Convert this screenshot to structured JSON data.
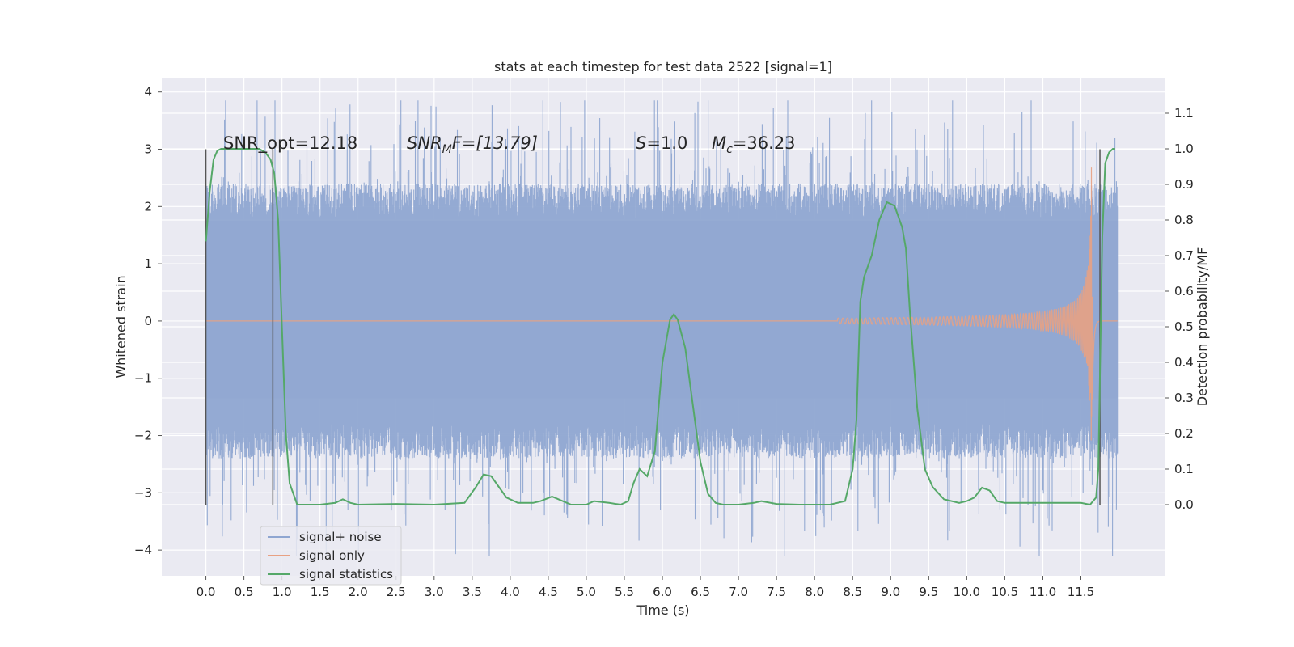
{
  "chart_data": {
    "type": "line",
    "title": "stats at each timestep for test data 2522 [signal=1]",
    "xlabel": "Time (s)",
    "ylabel_left": "Whitened strain",
    "ylabel_right": "Detection probability/MF",
    "xlim": [
      -0.58,
      12.6
    ],
    "ylim_left": [
      -4.45,
      4.25
    ],
    "ylim_right": [
      -0.2,
      1.2
    ],
    "x_ticks": [
      "0.0",
      "0.5",
      "1.0",
      "1.5",
      "2.0",
      "2.5",
      "3.0",
      "3.5",
      "4.0",
      "4.5",
      "5.0",
      "5.5",
      "6.0",
      "6.5",
      "7.0",
      "7.5",
      "8.0",
      "8.5",
      "9.0",
      "9.5",
      "10.0",
      "10.5",
      "11.0",
      "11.5"
    ],
    "y_left_ticks": [
      "4",
      "3",
      "2",
      "1",
      "0",
      "−1",
      "−2",
      "−3",
      "−4"
    ],
    "y_right_ticks": [
      "1.1",
      "1.0",
      "0.9",
      "0.8",
      "0.7",
      "0.6",
      "0.5",
      "0.4",
      "0.3",
      "0.2",
      "0.1",
      "0.0"
    ],
    "grid": true,
    "legend_position": "lower-left",
    "annotations": {
      "snr_opt": "SNR_opt=12.18",
      "snr_mf_main": "SNR",
      "snr_mf_sub": "M",
      "snr_mf_rest": "F=[13.79]",
      "s_main": "S",
      "s_rest": "=1.0",
      "mc_main": "M",
      "mc_sub": "c",
      "mc_rest": "=36.23"
    },
    "vertical_lines_x": [
      0.0,
      0.88,
      11.75
    ],
    "series": [
      {
        "name": "signal+ noise",
        "color": "#8fa6d1",
        "description_range": [
          -4.1,
          3.85
        ],
        "typical_envelope": [
          -2.4,
          2.4
        ]
      },
      {
        "name": "signal only",
        "color": "#e8a183",
        "chirp_start_x": 8.3,
        "chirp_peak_x": 11.65,
        "chirp_peak_amplitude": 3.7
      },
      {
        "name": "signal statistics",
        "color": "#55a868",
        "x": [
          0.0,
          0.05,
          0.1,
          0.15,
          0.2,
          0.3,
          0.5,
          0.7,
          0.78,
          0.85,
          0.9,
          0.95,
          1.0,
          1.05,
          1.1,
          1.2,
          1.5,
          1.7,
          1.8,
          1.9,
          2.0,
          2.5,
          3.0,
          3.4,
          3.55,
          3.65,
          3.75,
          3.85,
          3.95,
          4.1,
          4.3,
          4.4,
          4.55,
          4.8,
          5.0,
          5.1,
          5.3,
          5.45,
          5.55,
          5.62,
          5.7,
          5.8,
          5.9,
          6.0,
          6.1,
          6.15,
          6.2,
          6.3,
          6.4,
          6.5,
          6.6,
          6.7,
          6.8,
          7.0,
          7.2,
          7.3,
          7.5,
          7.8,
          8.2,
          8.4,
          8.5,
          8.55,
          8.6,
          8.65,
          8.75,
          8.85,
          8.95,
          9.05,
          9.15,
          9.2,
          9.25,
          9.35,
          9.45,
          9.55,
          9.7,
          9.9,
          10.0,
          10.1,
          10.2,
          10.3,
          10.4,
          10.5,
          10.8,
          11.2,
          11.5,
          11.62,
          11.7,
          11.73,
          11.75,
          11.78,
          11.82,
          11.87,
          11.92,
          11.95
        ],
        "y": [
          0.74,
          0.88,
          0.97,
          0.995,
          1.0,
          1.0,
          1.0,
          1.0,
          0.99,
          0.97,
          0.93,
          0.8,
          0.5,
          0.2,
          0.06,
          0.0,
          0.0,
          0.005,
          0.015,
          0.005,
          0.0,
          0.002,
          0.0,
          0.005,
          0.05,
          0.085,
          0.08,
          0.05,
          0.02,
          0.005,
          0.005,
          0.01,
          0.023,
          0.0,
          0.0,
          0.01,
          0.005,
          0.0,
          0.01,
          0.06,
          0.1,
          0.08,
          0.15,
          0.4,
          0.52,
          0.535,
          0.52,
          0.44,
          0.28,
          0.12,
          0.03,
          0.005,
          0.0,
          0.0,
          0.005,
          0.01,
          0.002,
          0.0,
          0.0,
          0.01,
          0.1,
          0.24,
          0.57,
          0.64,
          0.7,
          0.8,
          0.85,
          0.84,
          0.78,
          0.72,
          0.55,
          0.27,
          0.1,
          0.05,
          0.015,
          0.005,
          0.01,
          0.02,
          0.048,
          0.04,
          0.01,
          0.005,
          0.005,
          0.005,
          0.005,
          0.0,
          0.02,
          0.1,
          0.36,
          0.75,
          0.96,
          0.99,
          1.0,
          1.0
        ]
      }
    ]
  }
}
